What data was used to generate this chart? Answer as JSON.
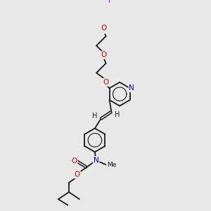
{
  "bg_color": "#e8e8e8",
  "bond_color": "#1a1a1a",
  "atom_colors": {
    "F": "#dd00dd",
    "O": "#dd0000",
    "N": "#0000cc",
    "C": "#1a1a1a",
    "H": "#1a1a1a"
  },
  "figsize": [
    3.0,
    3.0
  ],
  "dpi": 100
}
